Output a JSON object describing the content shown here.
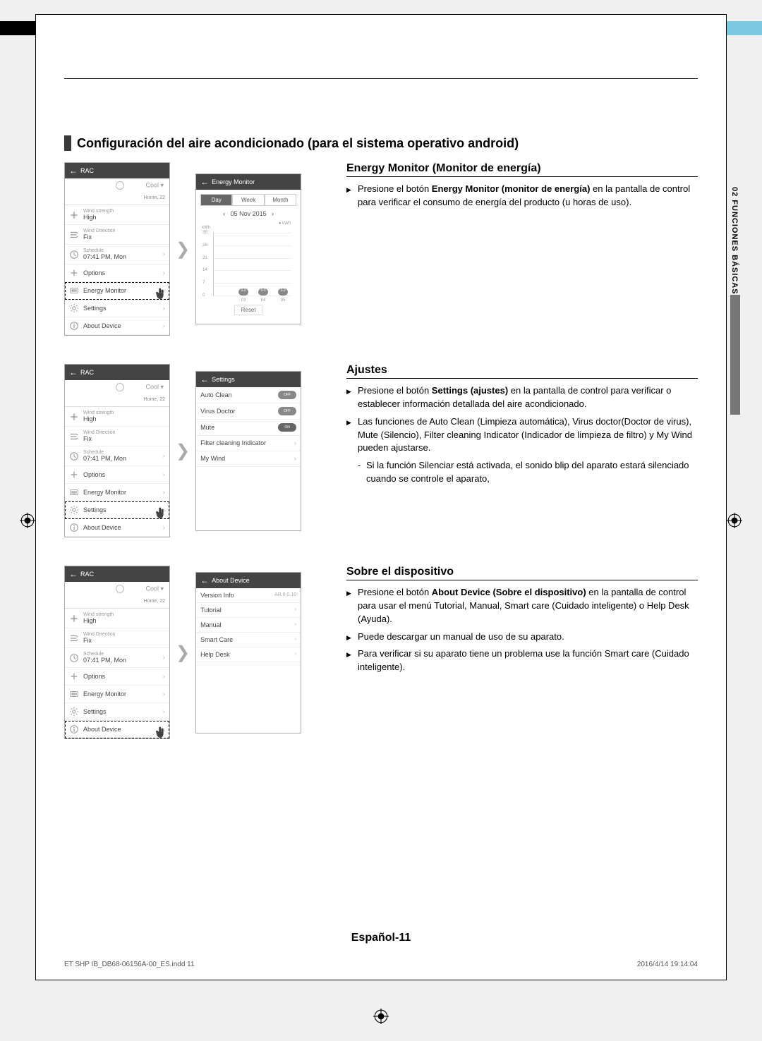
{
  "color_bar": [
    "#000000",
    "#ffffff",
    "#000000",
    "#cccccc",
    "#888888",
    "#ffffff",
    "#000000",
    "#ffffff",
    "#ffffff",
    "#ffffff",
    "#ffffff",
    "#f2e600",
    "#e6007e",
    "#00a6e2",
    "#f08a00",
    "#67b346",
    "#f5a3c7",
    "#ffffff",
    "#7ac8e2"
  ],
  "main_title": "Configuración del aire acondicionado (para el sistema operativo android)",
  "side_label": "02   FUNCIONES BÁSICAS",
  "rac_menu": {
    "header": "RAC",
    "mode": "Cool",
    "home_sub": "Home, 22",
    "rows": [
      {
        "icon": "fan-icon",
        "label": "Wind strength",
        "value": "High",
        "chev": false
      },
      {
        "icon": "direction-icon",
        "label": "Wind Direction",
        "value": "Fix",
        "chev": false
      },
      {
        "icon": "clock-icon",
        "label": "Schedule",
        "value": "07:41 PM, Mon",
        "chev": true
      },
      {
        "icon": "plus-icon",
        "label": "",
        "value": "Options",
        "chev": true
      },
      {
        "icon": "meter-icon",
        "label": "",
        "value": "Energy Monitor",
        "chev": true
      },
      {
        "icon": "gear-icon",
        "label": "",
        "value": "Settings",
        "chev": true
      },
      {
        "icon": "info-icon",
        "label": "",
        "value": "About Device",
        "chev": true
      }
    ]
  },
  "energy_monitor_screen": {
    "header": "Energy Monitor",
    "tabs": [
      "Day",
      "Week",
      "Month"
    ],
    "active_tab": 0,
    "date": "05 Nov 2015",
    "unit_left": "kWh",
    "unit_right": "● kWh",
    "y_ticks": [
      0,
      7,
      14,
      21,
      28,
      35
    ],
    "bars": [
      {
        "x": "03",
        "val": "0.0"
      },
      {
        "x": "04",
        "val": "0.0"
      },
      {
        "x": "05",
        "val": "0.0"
      }
    ],
    "reset": "Reset"
  },
  "settings_screen": {
    "header": "Settings",
    "rows": [
      {
        "label": "Auto Clean",
        "type": "toggle",
        "state": "OFF"
      },
      {
        "label": "Virus Doctor",
        "type": "toggle",
        "state": "OFF"
      },
      {
        "label": "Mute",
        "type": "toggle",
        "state": "ON"
      },
      {
        "label": "Filter cleaning Indicator",
        "type": "chev"
      },
      {
        "label": "My Wind",
        "type": "chev"
      }
    ]
  },
  "about_screen": {
    "header": "About Device",
    "rows": [
      {
        "label": "Version Info",
        "right": "AR.0.0.10"
      },
      {
        "label": "Tutorial",
        "right": "›"
      },
      {
        "label": "Manual",
        "right": "›"
      },
      {
        "label": "Smart Care",
        "right": "›"
      },
      {
        "label": "Help Desk",
        "right": "›"
      }
    ]
  },
  "section1": {
    "heading": "Energy Monitor (Monitor de energía)",
    "b1a": "Presione el botón ",
    "b1b": "Energy Monitor (monitor de energía)",
    "b1c": " en la pantalla de control para verificar el consumo de energía del producto (u  horas de uso)."
  },
  "section2": {
    "heading": "Ajustes",
    "b1a": "Presione el botón ",
    "b1b": "Settings (ajustes)",
    "b1c": " en la pantalla de control para verificar o establecer información detallada del aire acondicionado.",
    "b2": "Las funciones de Auto Clean (Limpieza automática), Virus doctor(Doctor de virus), Mute (Silencio), Filter cleaning Indicator (Indicador de limpieza de filtro) y My Wind pueden ajustarse.",
    "sub": "Si la función Silenciar está activada, el sonido blip del aparato estará silenciado cuando se controle el aparato,"
  },
  "section3": {
    "heading": "Sobre el dispositivo",
    "b1a": "Presione el botón ",
    "b1b": "About Device (Sobre el dispositivo)",
    "b1c": " en la pantalla de control para usar el menú Tutorial, Manual, Smart care (Cuidado inteligente) o Help Desk (Ayuda).",
    "b2": "Puede descargar un manual de uso de su aparato.",
    "b3": "Para verificar si su aparato tiene un problema use la función Smart care (Cuidado inteligente)."
  },
  "footer": {
    "center": "Español-11",
    "left": "ET SHP IB_DB68-06156A-00_ES.indd   11",
    "right": "2016/4/14   19:14:04"
  },
  "highlights": {
    "sec1": 4,
    "sec2": 5,
    "sec3": 6
  }
}
